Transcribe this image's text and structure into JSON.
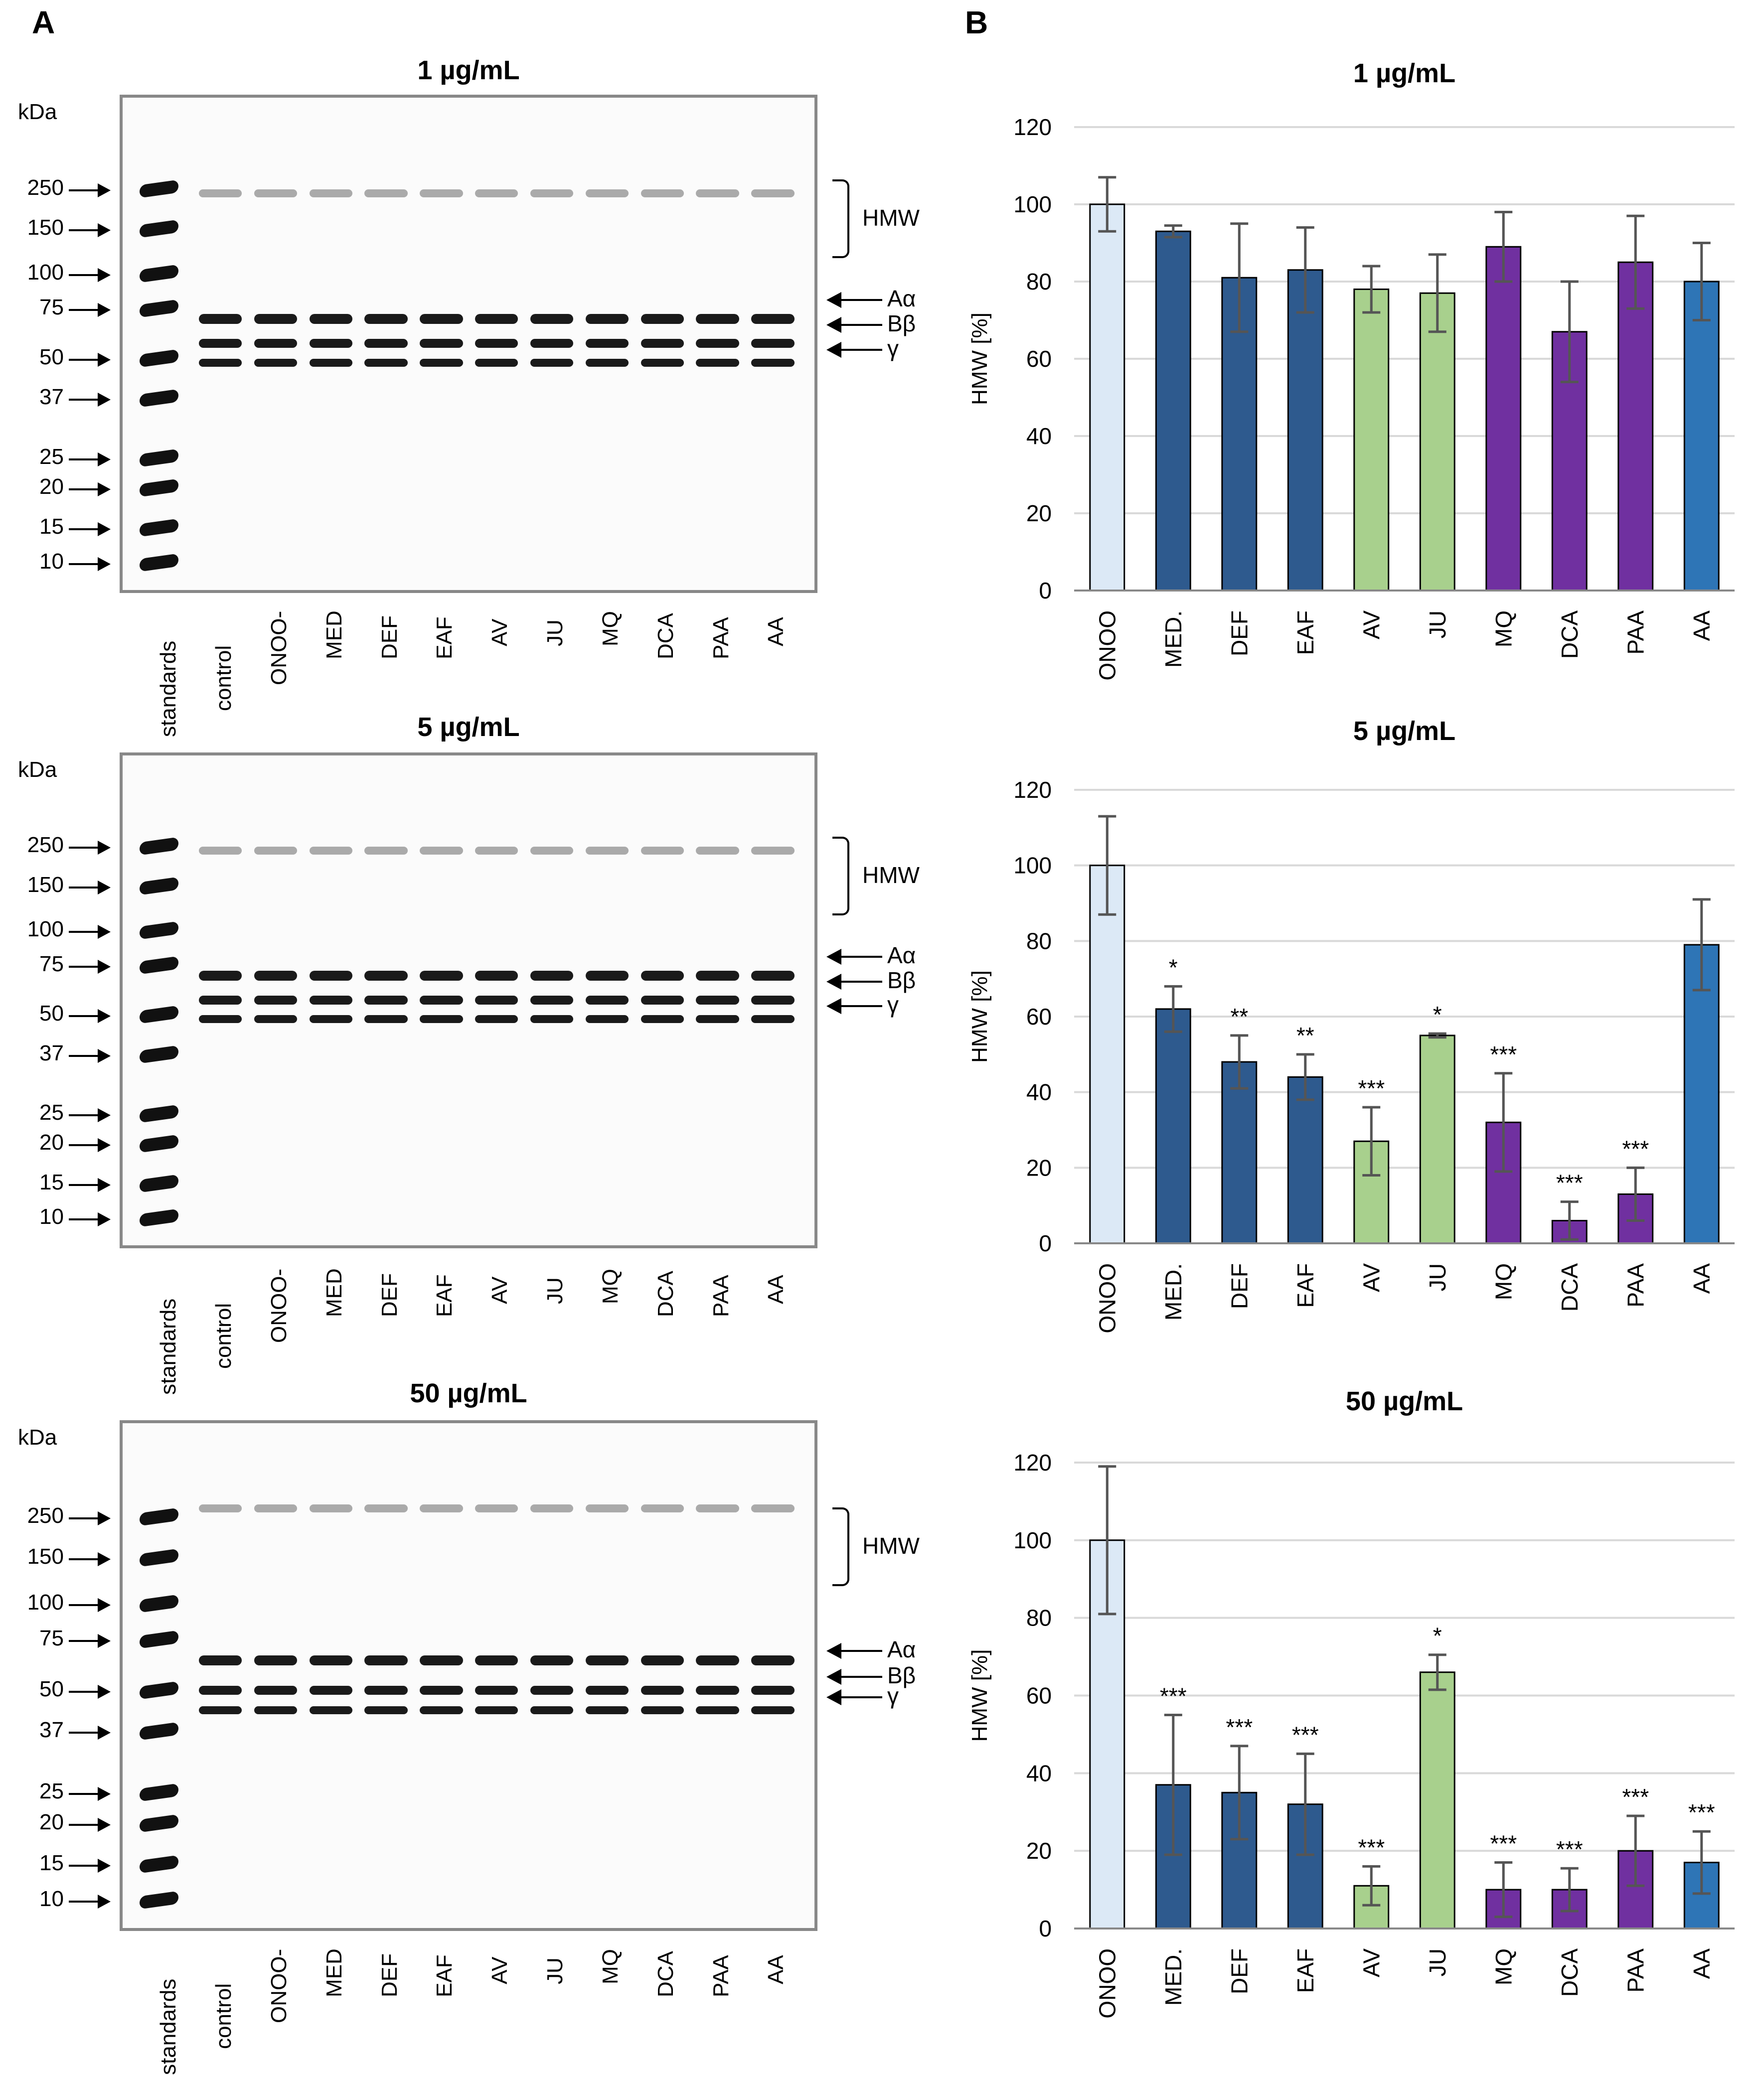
{
  "panel_labels": {
    "a": "A",
    "b": "B"
  },
  "gels": [
    {
      "title": "1 µg/mL",
      "kda_label": "kDa",
      "markers": [
        "250",
        "150",
        "100",
        "75",
        "50",
        "37",
        "25",
        "20",
        "15",
        "10"
      ],
      "lanes": [
        "standards",
        "control",
        "ONOO-",
        "MED",
        "DEF",
        "EAF",
        "AV",
        "JU",
        "MQ",
        "DCA",
        "PAA",
        "AA"
      ],
      "right_labels": {
        "hmw": "HMW",
        "a_alpha": "Aα",
        "b_beta": "Bβ",
        "gamma": "γ"
      }
    },
    {
      "title": "5 µg/mL",
      "kda_label": "kDa",
      "markers": [
        "250",
        "150",
        "100",
        "75",
        "50",
        "37",
        "25",
        "20",
        "15",
        "10"
      ],
      "lanes": [
        "standards",
        "control",
        "ONOO-",
        "MED",
        "DEF",
        "EAF",
        "AV",
        "JU",
        "MQ",
        "DCA",
        "PAA",
        "AA"
      ],
      "right_labels": {
        "hmw": "HMW",
        "a_alpha": "Aα",
        "b_beta": "Bβ",
        "gamma": "γ"
      }
    },
    {
      "title": "50 µg/mL",
      "kda_label": "kDa",
      "markers": [
        "250",
        "150",
        "100",
        "75",
        "50",
        "37",
        "25",
        "20",
        "15",
        "10"
      ],
      "lanes": [
        "standards",
        "control",
        "ONOO-",
        "MED",
        "DEF",
        "EAF",
        "AV",
        "JU",
        "MQ",
        "DCA",
        "PAA",
        "AA"
      ],
      "right_labels": {
        "hmw": "HMW",
        "a_alpha": "Aα",
        "b_beta": "Bβ",
        "gamma": "γ"
      }
    }
  ],
  "colors": {
    "light_blue": "#dce9f6",
    "navy": "#2e5a8e",
    "green": "#a8d08d",
    "purple": "#7030a0",
    "blue": "#2e75b6",
    "error": "#555555",
    "grid": "#d9d9d9"
  },
  "chart_data": [
    {
      "type": "bar",
      "title": "1 µg/mL",
      "ylabel": "HMW [%]",
      "xlabel": "",
      "ylim": [
        0,
        120
      ],
      "yticks": [
        0,
        20,
        40,
        60,
        80,
        100,
        120
      ],
      "categories": [
        "ONOO",
        "MED.",
        "DEF",
        "EAF",
        "AV",
        "JU",
        "MQ",
        "DCA",
        "PAA",
        "AA"
      ],
      "values": [
        100,
        93,
        81,
        83,
        78,
        77,
        89,
        67,
        85,
        80
      ],
      "errors": [
        7,
        1.5,
        14,
        11,
        6,
        10,
        9,
        13,
        12,
        10
      ],
      "significance": [
        "",
        "",
        "",
        "",
        "",
        "",
        "",
        "",
        "",
        ""
      ],
      "bar_colors": [
        "light_blue",
        "navy",
        "navy",
        "navy",
        "green",
        "green",
        "purple",
        "purple",
        "purple",
        "blue"
      ]
    },
    {
      "type": "bar",
      "title": "5 µg/mL",
      "ylabel": "HMW [%]",
      "xlabel": "",
      "ylim": [
        0,
        120
      ],
      "yticks": [
        0,
        20,
        40,
        60,
        80,
        100,
        120
      ],
      "categories": [
        "ONOO",
        "MED.",
        "DEF",
        "EAF",
        "AV",
        "JU",
        "MQ",
        "DCA",
        "PAA",
        "AA"
      ],
      "values": [
        100,
        62,
        48,
        44,
        27,
        55,
        32,
        6,
        13,
        79
      ],
      "errors": [
        13,
        6,
        7,
        6,
        9,
        0.5,
        13,
        5,
        7,
        12
      ],
      "significance": [
        "",
        "*",
        "**",
        "**",
        "***",
        "*",
        "***",
        "***",
        "***",
        ""
      ],
      "bar_colors": [
        "light_blue",
        "navy",
        "navy",
        "navy",
        "green",
        "green",
        "purple",
        "purple",
        "purple",
        "blue"
      ]
    },
    {
      "type": "bar",
      "title": "50 µg/mL",
      "ylabel": "HMW [%]",
      "xlabel": "",
      "ylim": [
        0,
        120
      ],
      "yticks": [
        0,
        20,
        40,
        60,
        80,
        100,
        120
      ],
      "categories": [
        "ONOO",
        "MED.",
        "DEF",
        "EAF",
        "AV",
        "JU",
        "MQ",
        "DCA",
        "PAA",
        "AA"
      ],
      "values": [
        100,
        37,
        35,
        32,
        11,
        66,
        10,
        10,
        20,
        17
      ],
      "errors": [
        19,
        18,
        12,
        13,
        5,
        4.5,
        7,
        5.5,
        9,
        8
      ],
      "significance": [
        "",
        "***",
        "***",
        "***",
        "***",
        "*",
        "***",
        "***",
        "***",
        "***"
      ],
      "bar_colors": [
        "light_blue",
        "navy",
        "navy",
        "navy",
        "green",
        "green",
        "purple",
        "purple",
        "purple",
        "blue"
      ]
    }
  ]
}
